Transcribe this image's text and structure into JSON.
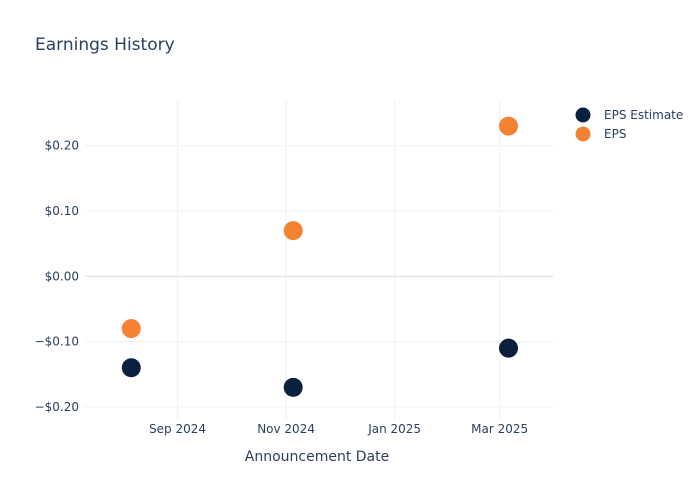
{
  "chart_data": {
    "type": "scatter",
    "title": "Earnings History",
    "xlabel": "Announcement Date",
    "ylabel": "",
    "x_ticks": [
      {
        "date": "2024-09-01",
        "label": "Sep 2024"
      },
      {
        "date": "2024-11-01",
        "label": "Nov 2024"
      },
      {
        "date": "2025-01-01",
        "label": "Jan 2025"
      },
      {
        "date": "2025-03-01",
        "label": "Mar 2025"
      }
    ],
    "y_ticks": [
      {
        "value": 0.2,
        "label": "$0.20"
      },
      {
        "value": 0.1,
        "label": "$0.10"
      },
      {
        "value": 0.0,
        "label": "$0.00"
      },
      {
        "value": -0.1,
        "label": "−$0.10"
      },
      {
        "value": -0.2,
        "label": "−$0.20"
      }
    ],
    "xlim": [
      "2024-07-11",
      "2025-03-31"
    ],
    "ylim": [
      -0.22,
      0.27
    ],
    "x": [
      "2024-08-06",
      "2024-11-05",
      "2025-03-06"
    ],
    "series": [
      {
        "name": "EPS Estimate",
        "color": "#0b1f3f",
        "values": [
          -0.14,
          -0.17,
          -0.11
        ]
      },
      {
        "name": "EPS",
        "color": "#f58233",
        "values": [
          -0.08,
          0.07,
          0.23
        ]
      }
    ],
    "grid": true,
    "legend_position": "top-right"
  }
}
